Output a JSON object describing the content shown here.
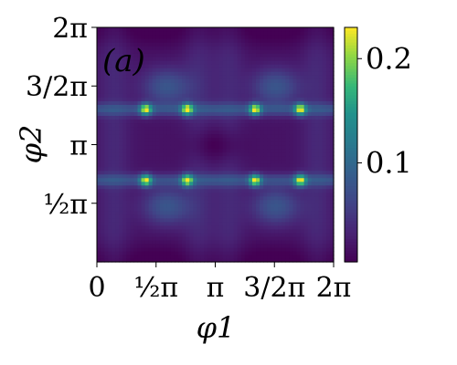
{
  "chart_data": {
    "type": "heatmap",
    "panel_label": "(a)",
    "xlabel": "φ1",
    "ylabel": "φ2",
    "x_range": [
      0,
      6.283185
    ],
    "y_range": [
      0,
      6.283185
    ],
    "x_ticks": [
      {
        "value": 0,
        "label": "0"
      },
      {
        "value": 1.570796,
        "label": "½π"
      },
      {
        "value": 3.141593,
        "label": "π"
      },
      {
        "value": 4.712389,
        "label": "3/2π"
      },
      {
        "value": 6.283185,
        "label": "2π"
      }
    ],
    "y_ticks": [
      {
        "value": 1.570796,
        "label": "½π"
      },
      {
        "value": 3.141593,
        "label": "π"
      },
      {
        "value": 4.712389,
        "label": "3/2π"
      },
      {
        "value": 6.283185,
        "label": "2π"
      }
    ],
    "colormap": "viridis",
    "color_range": [
      0.005,
      0.23
    ],
    "colorbar_ticks": [
      {
        "value": 0.1,
        "label": "0.1"
      },
      {
        "value": 0.2,
        "label": "0.2"
      }
    ],
    "bright_peaks_approx": [
      {
        "x": 1.3,
        "y": 4.1,
        "value": 0.23
      },
      {
        "x": 2.4,
        "y": 4.1,
        "value": 0.23
      },
      {
        "x": 4.2,
        "y": 4.1,
        "value": 0.23
      },
      {
        "x": 5.4,
        "y": 4.1,
        "value": 0.23
      },
      {
        "x": 1.3,
        "y": 2.2,
        "value": 0.23
      },
      {
        "x": 2.4,
        "y": 2.2,
        "value": 0.23
      },
      {
        "x": 4.2,
        "y": 2.2,
        "value": 0.23
      },
      {
        "x": 5.4,
        "y": 2.2,
        "value": 0.23
      }
    ]
  }
}
